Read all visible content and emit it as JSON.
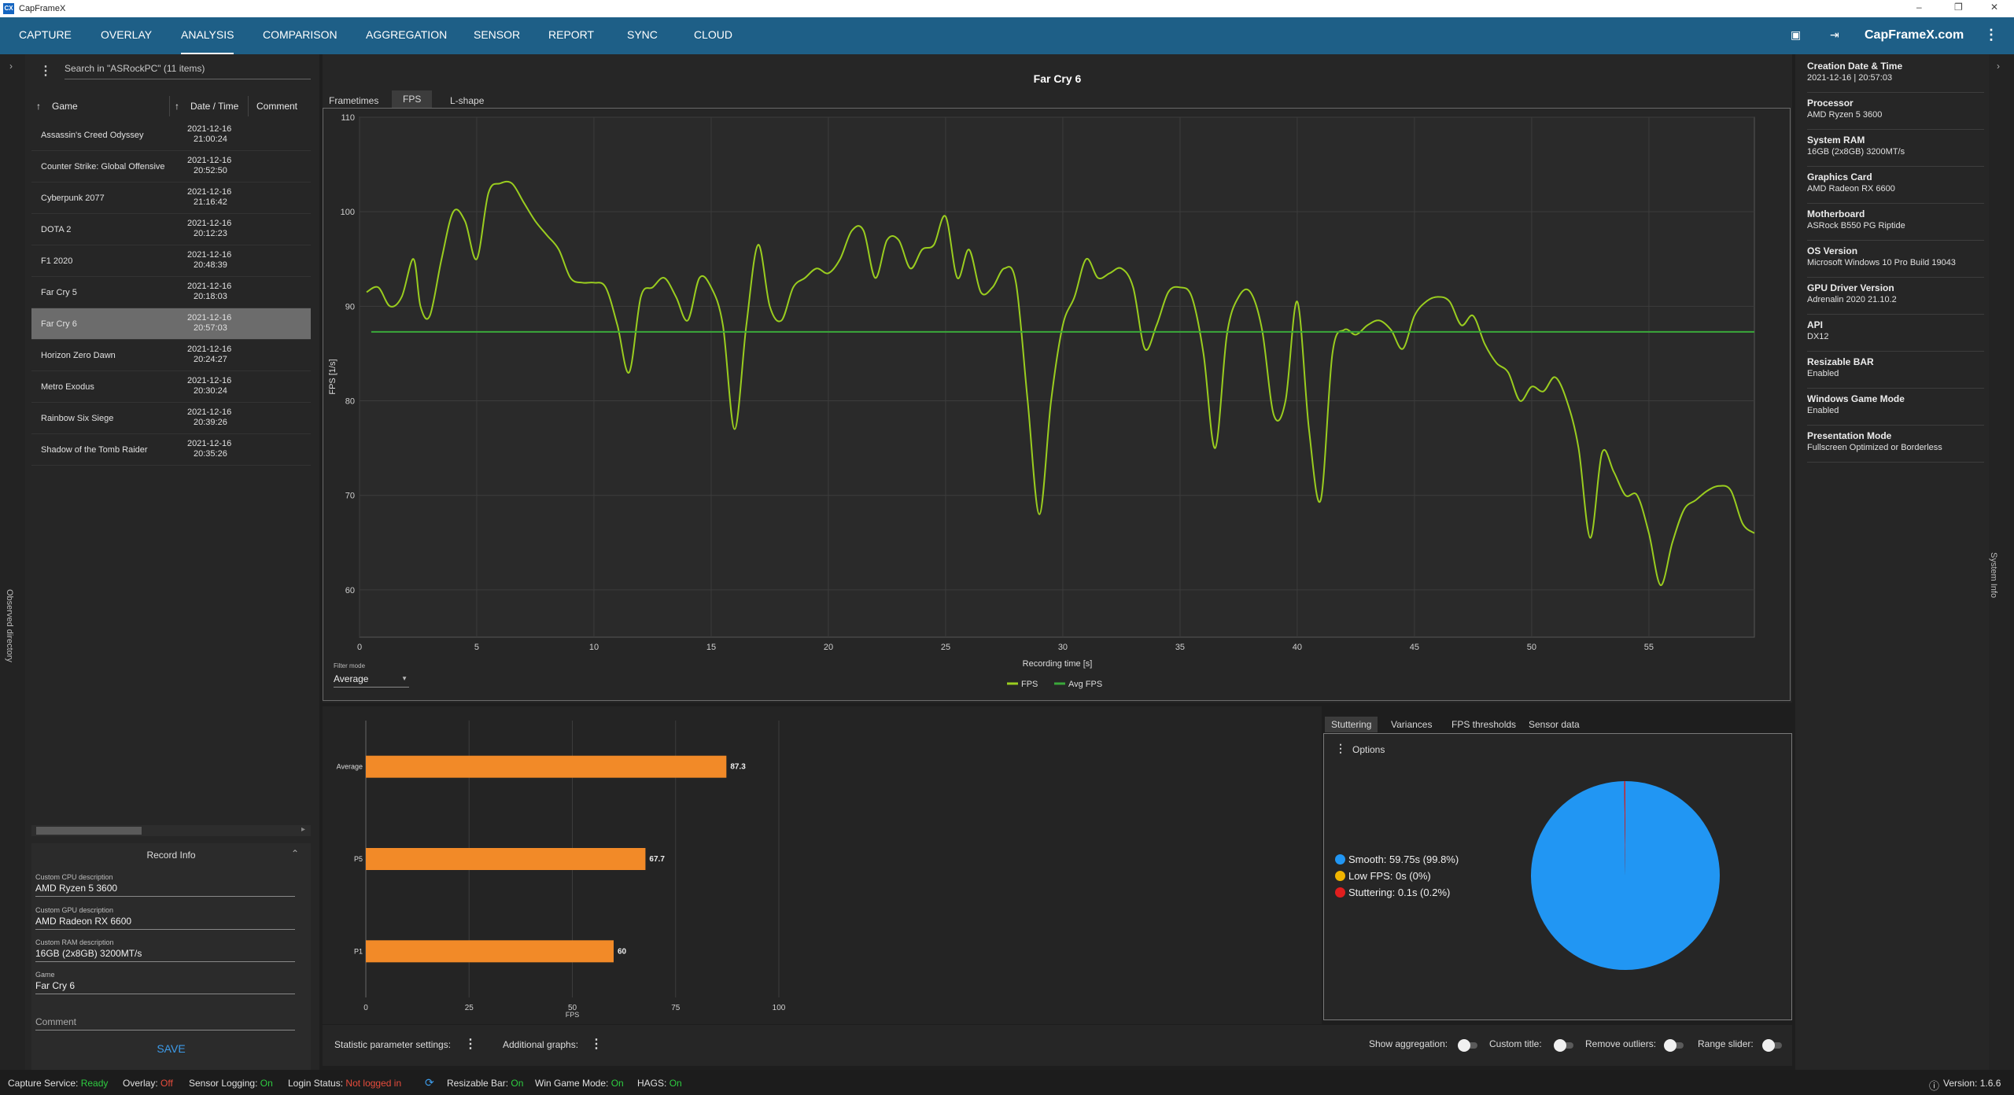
{
  "app": {
    "title": "CapFrameX",
    "logo": "CX",
    "site": "CapFrameX.com"
  },
  "nav": {
    "tabs": [
      "CAPTURE",
      "OVERLAY",
      "ANALYSIS",
      "COMPARISON",
      "AGGREGATION",
      "SENSOR",
      "REPORT",
      "SYNC",
      "CLOUD"
    ],
    "active": "ANALYSIS"
  },
  "left": {
    "vertical_label": "Observed directory",
    "search_placeholder": "Search in \"ASRockPC\" (11 items)",
    "columns": {
      "game": "Game",
      "datetime": "Date / Time",
      "comment": "Comment"
    },
    "records": [
      {
        "game": "Assassin's Creed Odyssey",
        "date": "2021-12-16",
        "time": "21:00:24"
      },
      {
        "game": "Counter Strike: Global Offensive",
        "date": "2021-12-16",
        "time": "20:52:50"
      },
      {
        "game": "Cyberpunk 2077",
        "date": "2021-12-16",
        "time": "21:16:42"
      },
      {
        "game": "DOTA 2",
        "date": "2021-12-16",
        "time": "20:12:23"
      },
      {
        "game": "F1 2020",
        "date": "2021-12-16",
        "time": "20:48:39"
      },
      {
        "game": "Far Cry 5",
        "date": "2021-12-16",
        "time": "20:18:03"
      },
      {
        "game": "Far Cry 6",
        "date": "2021-12-16",
        "time": "20:57:03",
        "selected": true
      },
      {
        "game": "Horizon Zero Dawn",
        "date": "2021-12-16",
        "time": "20:24:27"
      },
      {
        "game": "Metro Exodus",
        "date": "2021-12-16",
        "time": "20:30:24"
      },
      {
        "game": "Rainbow Six Siege",
        "date": "2021-12-16",
        "time": "20:39:26"
      },
      {
        "game": "Shadow of the Tomb Raider",
        "date": "2021-12-16",
        "time": "20:35:26"
      }
    ],
    "record_info": {
      "title": "Record Info",
      "cpu_label": "Custom CPU description",
      "cpu": "AMD Ryzen 5 3600",
      "gpu_label": "Custom GPU description",
      "gpu": "AMD Radeon RX 6600",
      "ram_label": "Custom RAM description",
      "ram": "16GB (2x8GB) 3200MT/s",
      "game_label": "Game",
      "game": "Far Cry 6",
      "comment_placeholder": "Comment",
      "save": "SAVE"
    }
  },
  "graph_tabs": [
    "Frametimes",
    "FPS",
    "L-shape"
  ],
  "graph_tab_active": "FPS",
  "filter": {
    "label": "Filter mode",
    "value": "Average"
  },
  "chart_data": [
    {
      "type": "line",
      "title": "Far Cry 6",
      "xlabel": "Recording time [s]",
      "ylabel": "FPS [1/s]",
      "xlim": [
        0,
        59.5
      ],
      "ylim": [
        55,
        110
      ],
      "xticks": [
        0,
        5,
        10,
        15,
        20,
        25,
        30,
        35,
        40,
        45,
        50,
        55
      ],
      "yticks": [
        60,
        70,
        80,
        90,
        100,
        110
      ],
      "grid": true,
      "legend": "bottom-center",
      "series": [
        {
          "name": "FPS",
          "color": "#9acd1f",
          "x": [
            0.3,
            0.8,
            1.3,
            1.8,
            2.3,
            2.6,
            3.0,
            3.5,
            4.0,
            4.5,
            5.0,
            5.5,
            6.0,
            6.5,
            7.0,
            7.5,
            8.0,
            8.5,
            9.0,
            9.5,
            10.0,
            10.5,
            11.0,
            11.5,
            12.0,
            12.5,
            13.0,
            13.5,
            14.0,
            14.5,
            15.0,
            15.5,
            16.0,
            16.5,
            17.0,
            17.5,
            18.0,
            18.5,
            19.0,
            19.5,
            20.0,
            20.5,
            21.0,
            21.5,
            22.0,
            22.5,
            23.0,
            23.5,
            24.0,
            24.5,
            25.0,
            25.5,
            26.0,
            26.5,
            27.0,
            27.5,
            28.0,
            28.5,
            29.0,
            29.5,
            30.0,
            30.5,
            31.0,
            31.5,
            32.0,
            32.5,
            33.0,
            33.5,
            34.0,
            34.5,
            35.0,
            35.5,
            36.0,
            36.5,
            37.0,
            37.5,
            38.0,
            38.5,
            39.0,
            39.5,
            40.0,
            40.5,
            41.0,
            41.5,
            42.0,
            42.5,
            43.0,
            43.5,
            44.0,
            44.5,
            45.0,
            45.5,
            46.0,
            46.5,
            47.0,
            47.5,
            48.0,
            48.5,
            49.0,
            49.5,
            50.0,
            50.5,
            51.0,
            51.5,
            52.0,
            52.5,
            53.0,
            53.5,
            54.0,
            54.5,
            55.0,
            55.5,
            56.0,
            56.5,
            57.0,
            57.5,
            58.0,
            58.5,
            59.0,
            59.5
          ],
          "y": [
            91.5,
            92.0,
            90.0,
            91.0,
            95.0,
            90.0,
            89.0,
            95.0,
            100.0,
            99.0,
            95.0,
            102.0,
            103.0,
            103.0,
            101.0,
            99.0,
            97.5,
            96.0,
            93.0,
            92.5,
            92.5,
            92.0,
            88.0,
            83.0,
            91.0,
            92.0,
            93.0,
            91.0,
            88.5,
            93.0,
            92.0,
            88.0,
            77.0,
            88.0,
            96.5,
            90.0,
            88.5,
            92.0,
            93.0,
            94.0,
            93.5,
            95.0,
            98.0,
            98.0,
            93.0,
            97.0,
            97.0,
            94.0,
            96.0,
            96.5,
            99.5,
            93.0,
            96.0,
            91.5,
            92.0,
            94.0,
            92.5,
            80.0,
            68.0,
            80.0,
            88.0,
            91.0,
            95.0,
            93.0,
            93.5,
            94.0,
            92.0,
            85.5,
            88.0,
            91.5,
            92.0,
            91.0,
            85.0,
            75.0,
            87.0,
            91.0,
            91.5,
            87.5,
            78.5,
            80.0,
            90.5,
            77.0,
            69.5,
            85.0,
            87.5,
            87.0,
            88.0,
            88.5,
            87.5,
            85.5,
            89.0,
            90.5,
            91.0,
            90.5,
            88.0,
            89.0,
            86.0,
            84.0,
            83.0,
            80.0,
            81.5,
            81.0,
            82.5,
            80.0,
            75.0,
            65.5,
            74.5,
            72.5,
            70.0,
            70.0,
            66.0,
            60.5,
            65.0,
            68.5,
            69.5,
            70.5,
            71.0,
            70.5,
            67.0,
            66.0
          ]
        },
        {
          "name": "Avg FPS",
          "color": "#3aa83a",
          "x": [
            0.5,
            59.5
          ],
          "y": [
            87.3,
            87.3
          ]
        }
      ]
    },
    {
      "type": "bar",
      "orientation": "horizontal",
      "xlabel": "FPS",
      "categories": [
        "Average",
        "P5",
        "P1"
      ],
      "values": [
        87.3,
        67.7,
        60
      ],
      "xlim": [
        0,
        100
      ],
      "xticks": [
        0,
        25,
        50,
        75,
        100
      ],
      "color": "#f28a28",
      "grid": true
    },
    {
      "type": "pie",
      "labels": [
        "Smooth",
        "Low FPS",
        "Stuttering"
      ],
      "values": [
        99.8,
        0.0,
        0.2
      ],
      "colors": [
        "#2196f3",
        "#f0b400",
        "#e01e1e"
      ]
    }
  ],
  "stutter": {
    "tabs": [
      "Stuttering",
      "Variances",
      "FPS thresholds",
      "Sensor data"
    ],
    "options": "Options",
    "legend": [
      "Smooth:  59.75s (99.8%)",
      "Low FPS:  0s (0%)",
      "Stuttering:  0.1s (0.2%)"
    ]
  },
  "settings": {
    "statistic": "Statistic parameter settings:",
    "additional": "Additional graphs:",
    "show_aggregation": "Show aggregation:",
    "custom_title": "Custom title:",
    "remove_outliers": "Remove outliers:",
    "range_slider": "Range slider:"
  },
  "system_info": {
    "vertical_label": "System Info",
    "items": [
      {
        "k": "Creation Date & Time",
        "v": "2021-12-16  |  20:57:03"
      },
      {
        "k": "Processor",
        "v": "AMD Ryzen 5 3600"
      },
      {
        "k": "System RAM",
        "v": "16GB (2x8GB) 3200MT/s"
      },
      {
        "k": "Graphics Card",
        "v": "AMD Radeon RX 6600"
      },
      {
        "k": "Motherboard",
        "v": "ASRock B550 PG Riptide"
      },
      {
        "k": "OS Version",
        "v": "Microsoft Windows 10 Pro Build 19043"
      },
      {
        "k": "GPU Driver Version",
        "v": "Adrenalin 2020 21.10.2"
      },
      {
        "k": "API",
        "v": "DX12"
      },
      {
        "k": "Resizable BAR",
        "v": "Enabled"
      },
      {
        "k": "Windows Game Mode",
        "v": "Enabled"
      },
      {
        "k": "Presentation Mode",
        "v": "Fullscreen Optimized or Borderless"
      }
    ]
  },
  "status": [
    {
      "label": "Capture Service:",
      "value": "Ready",
      "state": "ok"
    },
    {
      "label": "Overlay:",
      "value": "Off",
      "state": "bad"
    },
    {
      "label": "Sensor Logging:",
      "value": "On",
      "state": "ok"
    },
    {
      "label": "Login Status:",
      "value": "Not logged in",
      "state": "bad"
    },
    {
      "label": "Resizable Bar:",
      "value": "On",
      "state": "ok"
    },
    {
      "label": "Win Game Mode:",
      "value": "On",
      "state": "ok"
    },
    {
      "label": "HAGS:",
      "value": "On",
      "state": "ok"
    }
  ],
  "version": "Version: 1.6.6"
}
